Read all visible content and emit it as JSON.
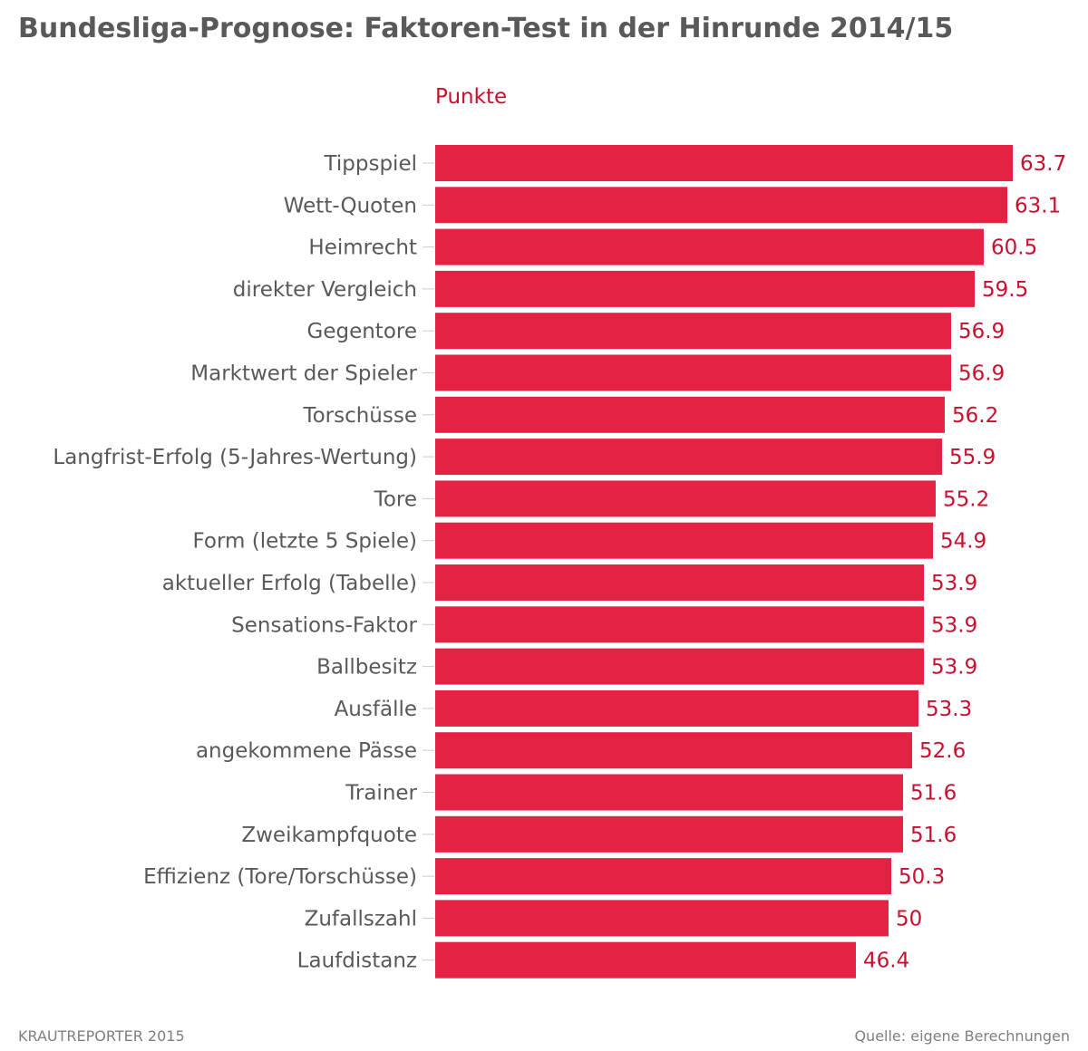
{
  "header": {
    "title": "Bundesliga-Prognose: Faktoren-Test in der Hinrunde 2014/15"
  },
  "footer": {
    "credit": "KRAUTREPORTER 2015",
    "source": "Quelle: eigene Berechnungen"
  },
  "colors": {
    "bar": "#e32244",
    "value_label": "#c8102e",
    "category_label": "#595959",
    "title": "#595959",
    "footer": "#7f7f7f"
  },
  "chart_data": {
    "type": "bar",
    "orientation": "horizontal",
    "xlabel": "Punkte",
    "ylabel": "",
    "grid": false,
    "legend": "none",
    "categories": [
      "Tippspiel",
      "Wett-Quoten",
      "Heimrecht",
      "direkter Vergleich",
      "Gegentore",
      "Marktwert der Spieler",
      "Torschüsse",
      "Langfrist-Erfolg (5-Jahres-Wertung)",
      "Tore",
      "Form (letzte 5 Spiele)",
      "aktueller Erfolg (Tabelle)",
      "Sensations-Faktor",
      "Ballbesitz",
      "Ausfälle",
      "angekommene Pässe",
      "Trainer",
      "Zweikampfquote",
      "Effizienz (Tore/Torschüsse)",
      "Zufallszahl",
      "Laufdistanz"
    ],
    "values": [
      63.7,
      63.1,
      60.5,
      59.5,
      56.9,
      56.9,
      56.2,
      55.9,
      55.2,
      54.9,
      53.9,
      53.9,
      53.9,
      53.3,
      52.6,
      51.6,
      51.6,
      50.3,
      50,
      46.4
    ],
    "value_labels": [
      "63.7",
      "63.1",
      "60.5",
      "59.5",
      "56.9",
      "56.9",
      "56.2",
      "55.9",
      "55.2",
      "54.9",
      "53.9",
      "53.9",
      "53.9",
      "53.3",
      "52.6",
      "51.6",
      "51.6",
      "50.3",
      "50",
      "46.4"
    ],
    "xlim": [
      0,
      63.7
    ]
  }
}
